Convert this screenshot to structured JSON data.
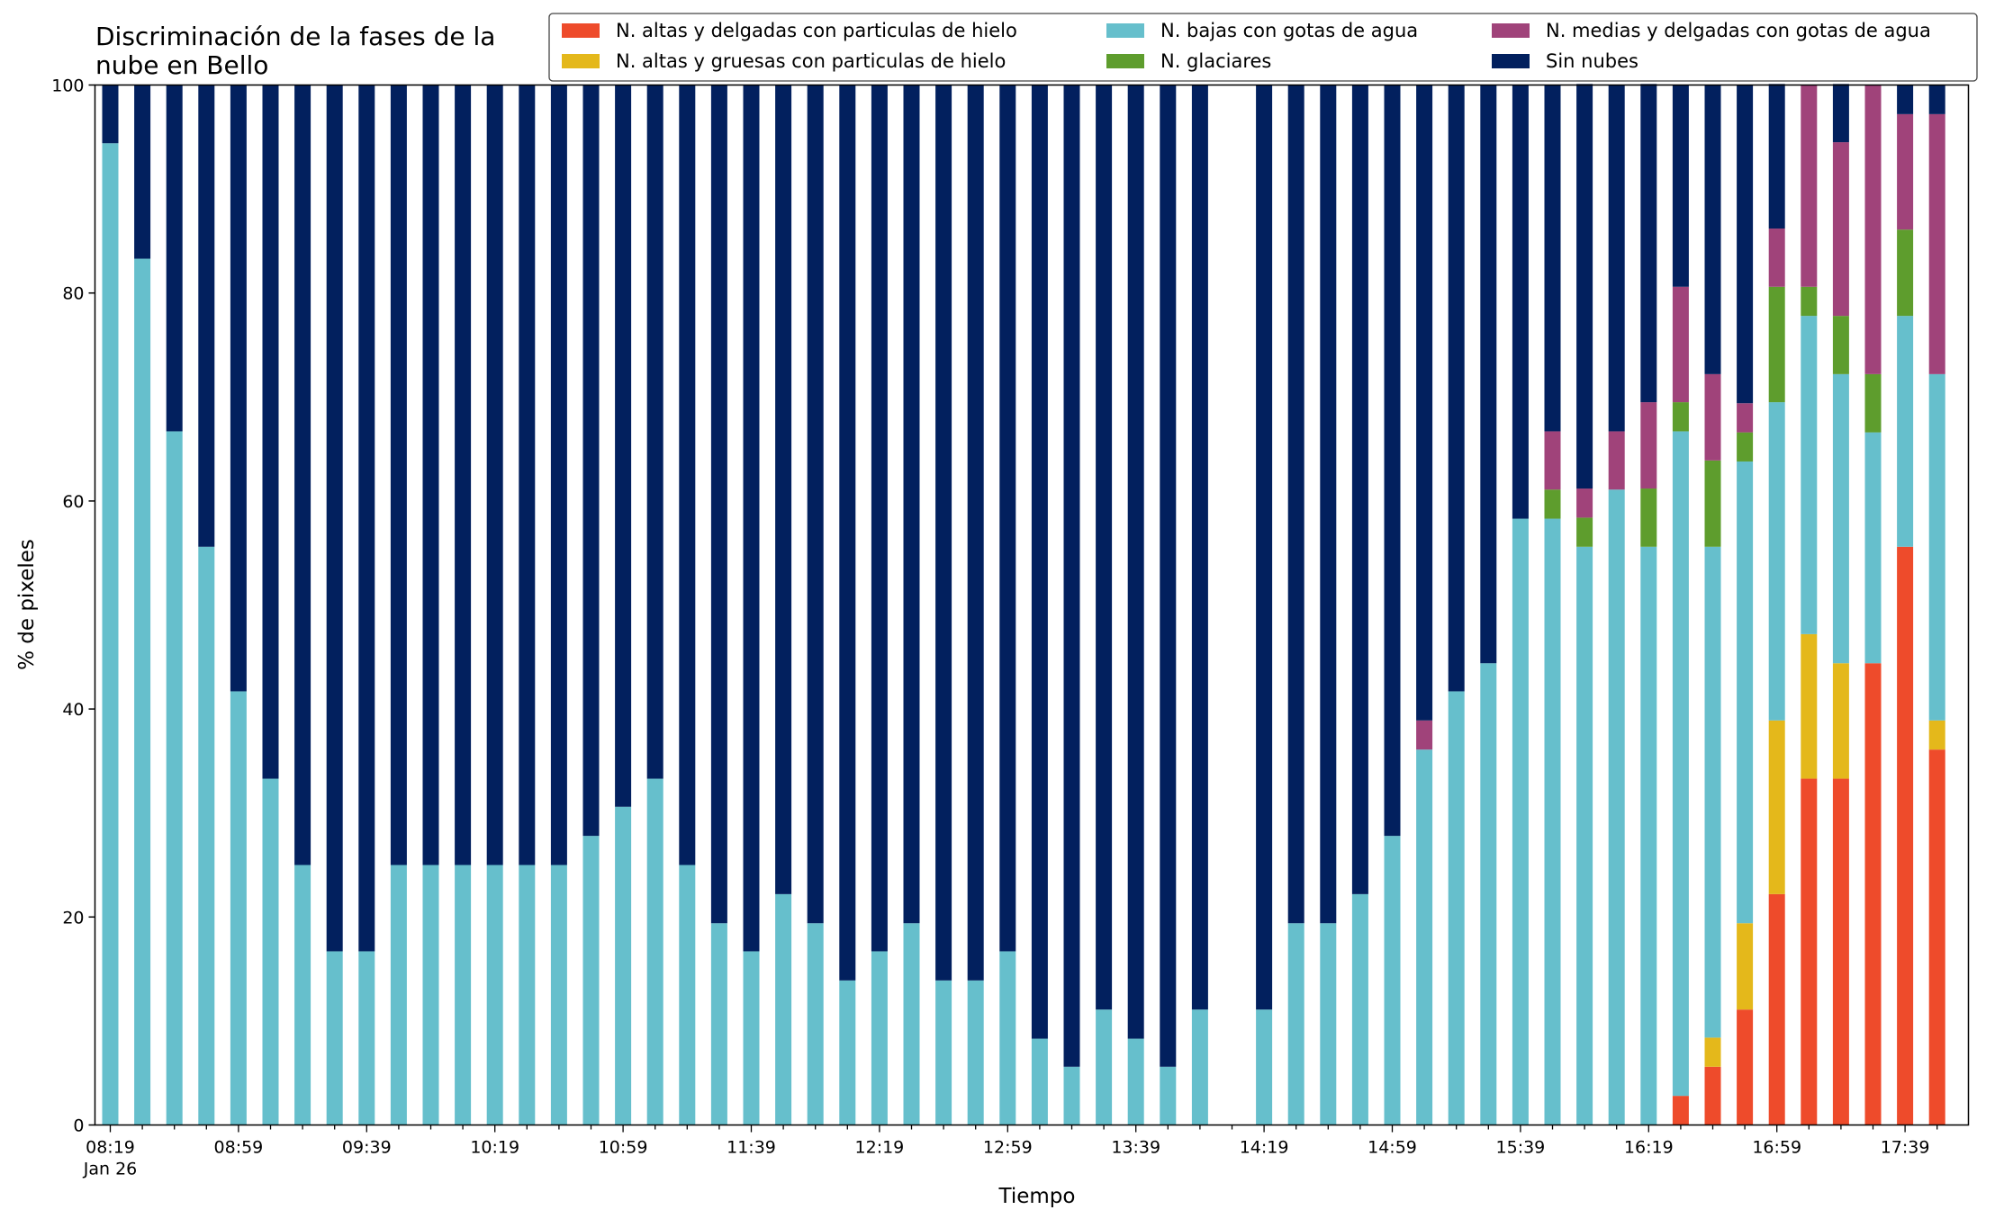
{
  "chart_data": {
    "type": "bar",
    "stacked": true,
    "title": [
      "Discriminación de la fases de la",
      "nube en Bello"
    ],
    "xlabel": "Tiempo",
    "ylabel": "% de pixeles",
    "ylim": [
      0,
      100
    ],
    "yticks": [
      "0",
      "20",
      "40",
      "60",
      "80",
      "100"
    ],
    "grid": false,
    "legend_position": "top-right",
    "xtick_labels": [
      {
        "index": 0,
        "label": "08:19",
        "sub": "Jan 26"
      },
      {
        "index": 4,
        "label": "08:59"
      },
      {
        "index": 8,
        "label": "09:39"
      },
      {
        "index": 12,
        "label": "10:19"
      },
      {
        "index": 16,
        "label": "10:59"
      },
      {
        "index": 20,
        "label": "11:39"
      },
      {
        "index": 24,
        "label": "12:19"
      },
      {
        "index": 28,
        "label": "12:59"
      },
      {
        "index": 32,
        "label": "13:39"
      },
      {
        "index": 36,
        "label": "14:19"
      },
      {
        "index": 40,
        "label": "14:59"
      },
      {
        "index": 44,
        "label": "15:39"
      },
      {
        "index": 48,
        "label": "16:19"
      },
      {
        "index": 52,
        "label": "16:59"
      },
      {
        "index": 56,
        "label": "17:39"
      }
    ],
    "series": [
      {
        "name": "N. altas y delgadas con particulas de hielo",
        "color": "#ee4b2b",
        "values": [
          0,
          0,
          0,
          0,
          0,
          0,
          0,
          0,
          0,
          0,
          0,
          0,
          0,
          0,
          0,
          0,
          0,
          0,
          0,
          0,
          0,
          0,
          0,
          0,
          0,
          0,
          0,
          0,
          0,
          0,
          0,
          0,
          0,
          0,
          0,
          0,
          0,
          0,
          0,
          0,
          0,
          0,
          0,
          0,
          0,
          0,
          0,
          0,
          0,
          2.8,
          5.6,
          11.1,
          22.2,
          33.3,
          33.3,
          44.4,
          55.6,
          36.1
        ]
      },
      {
        "name": "N. altas y gruesas con particulas de hielo",
        "color": "#e4b81b",
        "values": [
          0,
          0,
          0,
          0,
          0,
          0,
          0,
          0,
          0,
          0,
          0,
          0,
          0,
          0,
          0,
          0,
          0,
          0,
          0,
          0,
          0,
          0,
          0,
          0,
          0,
          0,
          0,
          0,
          0,
          0,
          0,
          0,
          0,
          0,
          0,
          0,
          0,
          0,
          0,
          0,
          0,
          0,
          0,
          0,
          0,
          0,
          0,
          0,
          0,
          0,
          2.8,
          8.3,
          16.7,
          13.9,
          11.1,
          0,
          0,
          2.8
        ]
      },
      {
        "name": "N. bajas con gotas de agua",
        "color": "#66bfcc",
        "values": [
          94.4,
          83.3,
          66.7,
          55.6,
          41.7,
          33.3,
          25,
          16.7,
          16.7,
          25,
          25,
          25,
          25,
          25,
          25,
          27.8,
          30.6,
          33.3,
          25,
          19.4,
          16.7,
          22.2,
          19.4,
          13.9,
          16.7,
          19.4,
          13.9,
          13.9,
          16.7,
          8.3,
          5.6,
          11.1,
          8.3,
          5.6,
          11.1,
          0,
          11.1,
          19.4,
          19.4,
          22.2,
          27.8,
          36.1,
          41.7,
          44.4,
          58.3,
          58.3,
          55.6,
          61.1,
          55.6,
          63.9,
          47.2,
          44.4,
          30.6,
          30.6,
          27.8,
          22.2,
          22.2,
          33.3
        ]
      },
      {
        "name": "N. glaciares",
        "color": "#5e9d2d",
        "values": [
          0,
          0,
          0,
          0,
          0,
          0,
          0,
          0,
          0,
          0,
          0,
          0,
          0,
          0,
          0,
          0,
          0,
          0,
          0,
          0,
          0,
          0,
          0,
          0,
          0,
          0,
          0,
          0,
          0,
          0,
          0,
          0,
          0,
          0,
          0,
          0,
          0,
          0,
          0,
          0,
          0,
          0,
          0,
          0,
          0,
          2.8,
          2.8,
          0,
          5.6,
          2.8,
          8.3,
          2.8,
          11.1,
          2.8,
          5.6,
          5.6,
          8.3,
          0
        ]
      },
      {
        "name": "N. medias y delgadas con gotas de agua",
        "color": "#a0437a",
        "values": [
          0,
          0,
          0,
          0,
          0,
          0,
          0,
          0,
          0,
          0,
          0,
          0,
          0,
          0,
          0,
          0,
          0,
          0,
          0,
          0,
          0,
          0,
          0,
          0,
          0,
          0,
          0,
          0,
          0,
          0,
          0,
          0,
          0,
          0,
          0,
          0,
          0,
          0,
          0,
          0,
          0,
          2.8,
          0,
          0,
          0,
          5.6,
          2.8,
          5.6,
          8.3,
          11.1,
          8.3,
          2.8,
          5.6,
          19.4,
          16.7,
          27.8,
          11.1,
          25
        ]
      },
      {
        "name": "Sin nubes",
        "color": "#02205e",
        "values": [
          5.6,
          16.7,
          33.3,
          44.4,
          58.3,
          66.7,
          75,
          83.3,
          83.3,
          75,
          75,
          75,
          75,
          75,
          75,
          72.2,
          69.4,
          66.7,
          75,
          80.6,
          83.3,
          77.8,
          80.6,
          86.1,
          83.3,
          80.6,
          86.1,
          86.1,
          83.3,
          91.7,
          94.4,
          88.9,
          91.7,
          94.4,
          88.9,
          0,
          88.9,
          80.6,
          80.6,
          77.8,
          72.2,
          61.1,
          58.3,
          55.6,
          41.7,
          33.3,
          38.9,
          33.3,
          30.6,
          19.4,
          27.8,
          30.6,
          13.9,
          0,
          5.6,
          0,
          2.8,
          2.8
        ]
      }
    ]
  }
}
